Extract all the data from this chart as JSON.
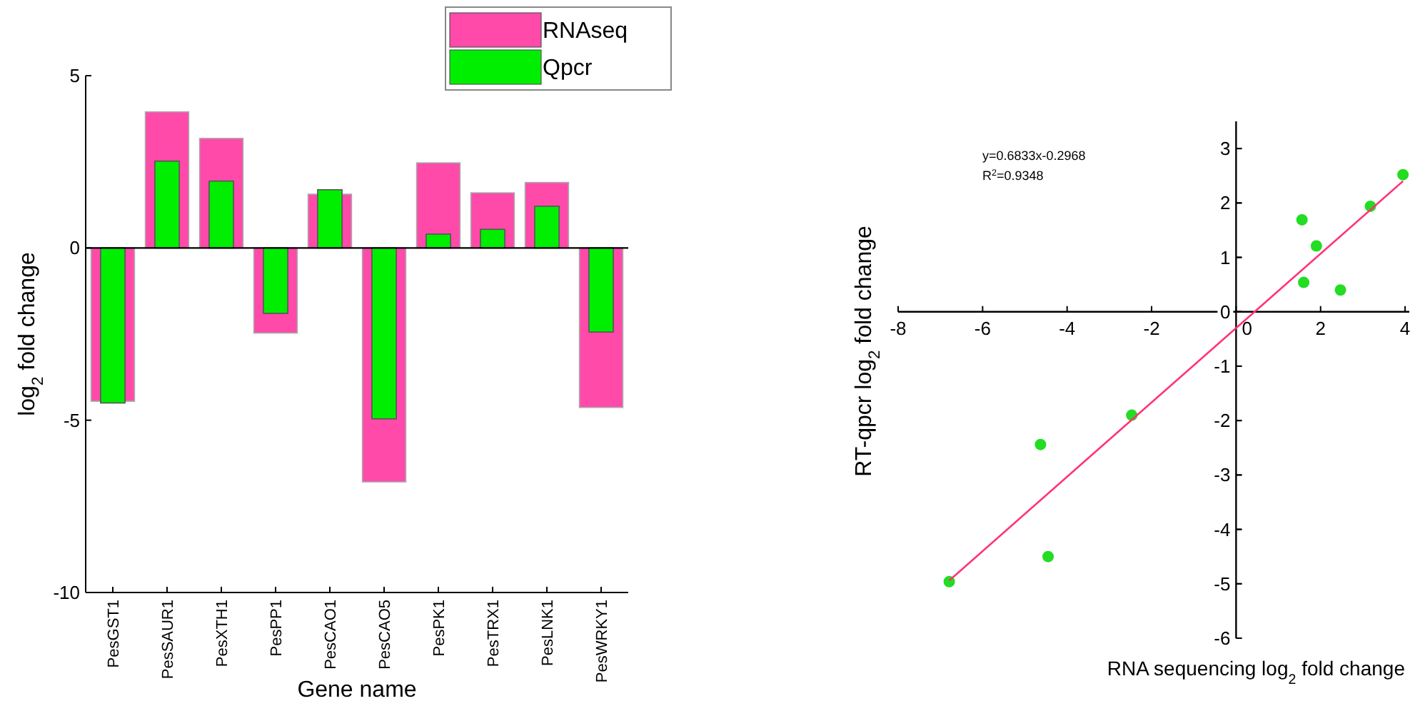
{
  "chart_data": [
    {
      "type": "bar",
      "xlabel": "Gene name",
      "ylabel": "log$_{2}$ fold change",
      "categories": [
        "PesGST1",
        "PesSAUR1",
        "PesXTH1",
        "PesPP1",
        "PesCAO1",
        "PesCAO5",
        "PesPK1",
        "PesTRX1",
        "PesLNK1",
        "PesWRKY1"
      ],
      "series": [
        {
          "name": "RNAseq",
          "color": "#ff4aaa",
          "values": [
            -4.45,
            3.95,
            3.18,
            -2.47,
            1.56,
            -6.79,
            2.47,
            1.6,
            1.9,
            -4.63
          ]
        },
        {
          "name": "Qpcr",
          "color": "#00ee00",
          "values": [
            -4.5,
            2.52,
            1.94,
            -1.9,
            1.69,
            -4.96,
            0.4,
            0.54,
            1.21,
            -2.44
          ]
        }
      ],
      "ylim": [
        -10,
        5
      ],
      "yticks": [
        -10,
        -5,
        0,
        5
      ],
      "grid": false,
      "legend": "top right",
      "ref_lines": [
        {
          "axis": "y",
          "value": 0
        }
      ]
    },
    {
      "type": "scatter",
      "xlabel": "RNA sequencing log$_{2}$ fold change",
      "ylabel": "RT-qpcr log$_{2}$ fold change",
      "annotations": [
        "y=0.6833x-0.2968",
        "R$^{2}$=0.9348"
      ],
      "series": [
        {
          "color": "#22dd22",
          "x": [
            -6.79,
            -4.63,
            -4.45,
            -2.47,
            1.56,
            1.6,
            1.9,
            2.47,
            3.18,
            3.95
          ],
          "values": [
            -4.96,
            -2.44,
            -4.5,
            -1.9,
            1.69,
            0.54,
            1.21,
            0.4,
            1.94,
            2.52
          ]
        },
        {
          "type": "line",
          "color": "#ff3377",
          "x": [
            -6.79,
            3.95
          ],
          "values": [
            -4.94,
            2.4
          ],
          "marker": "none"
        }
      ],
      "xlim": [
        -8,
        4.1
      ],
      "xticks": [
        -8,
        -6,
        -4,
        -2,
        0,
        2,
        4
      ],
      "ylim": [
        -6,
        3.5
      ],
      "yticks": [
        -6,
        -5,
        -4,
        -3,
        -2,
        -1,
        0,
        1,
        2,
        3
      ],
      "grid": false,
      "marker": "circle"
    }
  ]
}
